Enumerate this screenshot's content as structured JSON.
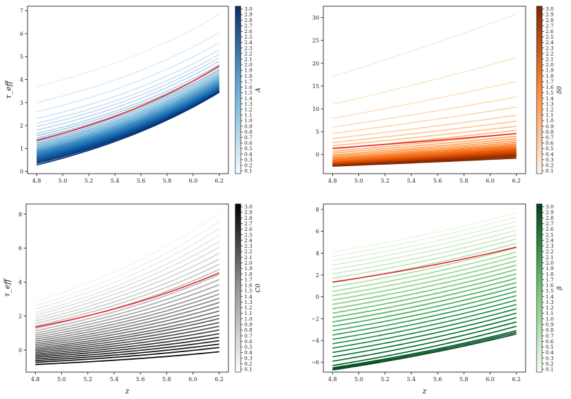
{
  "chart_data": [
    {
      "type": "line",
      "panel": "top-left",
      "xlabel": "",
      "ylabel": "τ_eff",
      "cbar_label": "A",
      "colormap": "Blues",
      "xticks": [
        "4.8",
        "5.0",
        "5.2",
        "5.4",
        "5.6",
        "5.8",
        "6.0",
        "6.2"
      ],
      "yticks": [
        "0",
        "1",
        "2",
        "3",
        "4",
        "5",
        "6",
        "7"
      ],
      "xlim": [
        4.73,
        6.27
      ],
      "ylim": [
        -0.1,
        7.2
      ],
      "x_range": [
        4.8,
        6.2
      ],
      "curve_shape": 0.9,
      "param_values": [
        0.1,
        0.2,
        0.3,
        0.4,
        0.5,
        0.6,
        0.7,
        0.8,
        0.9,
        1.0,
        1.1,
        1.2,
        1.3,
        1.4,
        1.5,
        1.6,
        1.7,
        1.8,
        1.9,
        2.0,
        2.1,
        2.2,
        2.3,
        2.4,
        2.5,
        2.6,
        2.7,
        2.8,
        2.9,
        3.0
      ],
      "param_ticks": [
        "0.1",
        "0.2",
        "0.3",
        "0.4",
        "0.5",
        "0.6",
        "0.7",
        "0.8",
        "0.9",
        "1.0",
        "1.1",
        "1.2",
        "1.3",
        "1.4",
        "1.5",
        "1.6",
        "1.7",
        "1.8",
        "1.9",
        "2.0",
        "2.1",
        "2.2",
        "2.3",
        "2.4",
        "2.5",
        "2.6",
        "2.7",
        "2.8",
        "2.9",
        "3.0"
      ],
      "start_values": [
        3.7,
        3.0,
        2.6,
        2.3,
        2.1,
        1.95,
        1.8,
        1.65,
        1.55,
        1.45,
        1.38,
        1.3,
        1.22,
        1.15,
        1.08,
        1.01,
        0.95,
        0.89,
        0.84,
        0.79,
        0.74,
        0.69,
        0.64,
        0.6,
        0.55,
        0.5,
        0.45,
        0.4,
        0.35,
        0.28
      ],
      "end_values": [
        6.85,
        6.05,
        5.6,
        5.3,
        5.1,
        4.95,
        4.8,
        4.65,
        4.55,
        4.45,
        4.38,
        4.3,
        4.22,
        4.15,
        4.08,
        4.02,
        3.96,
        3.9,
        3.85,
        3.8,
        3.75,
        3.7,
        3.66,
        3.62,
        3.58,
        3.55,
        3.52,
        3.49,
        3.47,
        3.45
      ],
      "reference": {
        "color": "#e8202a",
        "start": 1.35,
        "end": 4.6
      }
    },
    {
      "type": "line",
      "panel": "top-right",
      "xlabel": "",
      "ylabel": "",
      "cbar_label": "δ0",
      "colormap": "Oranges",
      "xticks": [
        "4.8",
        "5.0",
        "5.2",
        "5.4",
        "5.6",
        "5.8",
        "6.0",
        "6.2"
      ],
      "yticks": [
        "0",
        "5",
        "10",
        "15",
        "20",
        "25",
        "30"
      ],
      "xlim": [
        4.73,
        6.27
      ],
      "ylim": [
        -4.2,
        32.5
      ],
      "x_range": [
        4.8,
        6.2
      ],
      "curve_shape": 0.2,
      "param_values": [
        0.1,
        0.2,
        0.3,
        0.4,
        0.5,
        0.6,
        0.7,
        0.8,
        0.9,
        1.0,
        1.1,
        1.2,
        1.3,
        1.4,
        1.5,
        1.6,
        1.7,
        1.8,
        1.9,
        2.0,
        2.1,
        2.2,
        2.3,
        2.4,
        2.5,
        2.6,
        2.7,
        2.8,
        2.9,
        3.0
      ],
      "param_ticks": [
        "0.1",
        "0.2",
        "0.3",
        "0.4",
        "0.5",
        "0.6",
        "0.7",
        "0.8",
        "0.9",
        "1.0",
        "1.1",
        "1.2",
        "1.3",
        "1.4",
        "1.5",
        "1.6",
        "1.7",
        "1.8",
        "1.9",
        "2.0",
        "2.1",
        "2.2",
        "2.3",
        "2.4",
        "2.5",
        "2.6",
        "2.7",
        "2.8",
        "2.9",
        "3.0"
      ],
      "start_values": [
        17.1,
        11.0,
        7.9,
        6.0,
        4.6,
        3.5,
        2.6,
        1.9,
        1.2,
        0.7,
        0.3,
        -0.1,
        -0.4,
        -0.7,
        -0.95,
        -1.15,
        -1.35,
        -1.5,
        -1.65,
        -1.78,
        -1.9,
        -2.0,
        -2.1,
        -2.18,
        -2.25,
        -2.32,
        -2.38,
        -2.44,
        -2.5,
        -2.55
      ],
      "end_values": [
        30.8,
        21.2,
        16.0,
        12.6,
        10.4,
        8.6,
        7.3,
        6.2,
        5.3,
        4.6,
        4.0,
        3.5,
        3.05,
        2.65,
        2.3,
        2.0,
        1.72,
        1.46,
        1.22,
        1.0,
        0.8,
        0.6,
        0.43,
        0.27,
        0.1,
        -0.05,
        -0.2,
        -0.35,
        -0.5,
        -0.8
      ],
      "reference": {
        "color": "#e8202a",
        "start": 1.35,
        "end": 4.6
      }
    },
    {
      "type": "line",
      "panel": "bottom-left",
      "xlabel": "z",
      "ylabel": "τ_eff",
      "cbar_label": "C0",
      "colormap": "Greys",
      "xticks": [
        "4.8",
        "5.0",
        "5.2",
        "5.4",
        "5.6",
        "5.8",
        "6.0",
        "6.2"
      ],
      "yticks": [
        "0",
        "2",
        "4",
        "6",
        "8"
      ],
      "xlim": [
        4.73,
        6.27
      ],
      "ylim": [
        -1.3,
        8.6
      ],
      "x_range": [
        4.8,
        6.2
      ],
      "curve_shape": 0.8,
      "param_values": [
        0.1,
        0.2,
        0.3,
        0.4,
        0.5,
        0.6,
        0.7,
        0.8,
        0.9,
        1.0,
        1.1,
        1.2,
        1.3,
        1.4,
        1.5,
        1.6,
        1.7,
        1.8,
        1.9,
        2.0,
        2.1,
        2.2,
        2.3,
        2.4,
        2.5,
        2.6,
        2.7,
        2.8,
        2.9,
        3.0
      ],
      "param_ticks": [
        "0.1",
        "0.2",
        "0.3",
        "0.4",
        "0.5",
        "0.6",
        "0.7",
        "0.8",
        "0.9",
        "1.0",
        "1.1",
        "1.2",
        "1.3",
        "1.4",
        "1.5",
        "1.6",
        "1.7",
        "1.8",
        "1.9",
        "2.0",
        "2.1",
        "2.2",
        "2.3",
        "2.4",
        "2.5",
        "2.6",
        "2.7",
        "2.8",
        "2.9",
        "3.0"
      ],
      "start_values": [
        2.85,
        2.6,
        2.4,
        2.2,
        2.05,
        1.88,
        1.72,
        1.57,
        1.42,
        1.28,
        1.14,
        1.0,
        0.88,
        0.76,
        0.64,
        0.53,
        0.42,
        0.32,
        0.22,
        0.12,
        0.03,
        -0.06,
        -0.15,
        -0.24,
        -0.33,
        -0.42,
        -0.52,
        -0.62,
        -0.72,
        -0.85
      ],
      "end_values": [
        8.05,
        7.55,
        7.15,
        6.75,
        6.4,
        6.05,
        5.7,
        5.35,
        5.05,
        4.75,
        4.45,
        4.15,
        3.85,
        3.55,
        3.3,
        3.05,
        2.8,
        2.55,
        2.3,
        2.05,
        1.85,
        1.62,
        1.4,
        1.18,
        0.96,
        0.75,
        0.55,
        0.35,
        0.15,
        -0.1
      ],
      "reference": {
        "color": "#e8202a",
        "start": 1.35,
        "end": 4.55
      }
    },
    {
      "type": "line",
      "panel": "bottom-right",
      "xlabel": "z",
      "ylabel": "",
      "cbar_label": "β",
      "colormap": "Greens",
      "xticks": [
        "4.8",
        "5.0",
        "5.2",
        "5.4",
        "5.6",
        "5.8",
        "6.0",
        "6.2"
      ],
      "yticks": [
        "−6",
        "−4",
        "−2",
        "0",
        "2",
        "4",
        "6",
        "8"
      ],
      "ytick_values": [
        -6,
        -4,
        -2,
        0,
        2,
        4,
        6,
        8
      ],
      "xlim": [
        4.73,
        6.27
      ],
      "ylim": [
        -6.9,
        8.5
      ],
      "x_range": [
        4.8,
        6.2
      ],
      "curve_shape": 0.5,
      "param_values": [
        0.1,
        0.2,
        0.3,
        0.4,
        0.5,
        0.6,
        0.7,
        0.8,
        0.9,
        1.0,
        1.1,
        1.2,
        1.3,
        1.4,
        1.5,
        1.6,
        1.7,
        1.8,
        1.9,
        2.0,
        2.1,
        2.2,
        2.3,
        2.4,
        2.5,
        2.6,
        2.7,
        2.8,
        2.9,
        3.0
      ],
      "param_ticks": [
        "0.1",
        "0.2",
        "0.3",
        "0.4",
        "0.5",
        "0.6",
        "0.7",
        "0.8",
        "0.9",
        "1.0",
        "1.1",
        "1.2",
        "1.3",
        "1.4",
        "1.5",
        "1.6",
        "1.7",
        "1.8",
        "1.9",
        "2.0",
        "2.1",
        "2.2",
        "2.3",
        "2.4",
        "2.5",
        "2.6",
        "2.7",
        "2.8",
        "2.9",
        "3.0"
      ],
      "start_values": [
        4.1,
        3.7,
        3.3,
        2.9,
        2.5,
        2.1,
        1.7,
        1.3,
        0.9,
        0.5,
        0.1,
        -0.3,
        -0.7,
        -1.1,
        -1.5,
        -1.9,
        -2.3,
        -2.7,
        -3.1,
        -3.5,
        -3.9,
        -4.3,
        -4.7,
        -5.1,
        -5.5,
        -5.9,
        -6.3,
        -6.5,
        -6.6,
        -6.7
      ],
      "end_values": [
        7.7,
        7.3,
        6.9,
        6.5,
        6.1,
        5.7,
        5.3,
        4.9,
        4.5,
        4.1,
        3.7,
        3.3,
        2.9,
        2.5,
        2.1,
        1.7,
        1.3,
        0.9,
        0.5,
        0.1,
        -0.3,
        -0.7,
        -1.1,
        -1.5,
        -1.9,
        -2.3,
        -2.7,
        -3.1,
        -3.25,
        -3.4
      ],
      "reference": {
        "color": "#e8202a",
        "start": 1.35,
        "end": 4.55
      }
    }
  ]
}
